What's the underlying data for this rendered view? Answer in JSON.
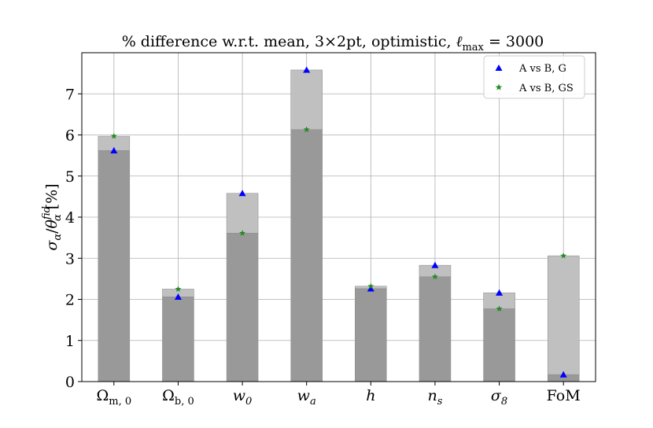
{
  "chart_data": {
    "type": "bar",
    "title": "% difference w.r.t. mean, 3×2pt, optimistic, ℓmax = 3000",
    "title_parts": {
      "prefix": "% difference w.r.t. mean, 3",
      "times": "×",
      "mid": "2pt, optimistic, ",
      "ell": "ℓ",
      "sub": "max",
      "suffix": " = 3000"
    },
    "xlabel": "",
    "ylabel": "σα/θαfid [%]",
    "ylabel_parts": {
      "sigma": "σ",
      "sub_alpha": "α",
      "slash": "/",
      "theta": "θ",
      "sup_fid": "fid",
      "unit": " [%]"
    },
    "ylim": [
      0,
      8
    ],
    "yticks": [
      0,
      1,
      2,
      3,
      4,
      5,
      6,
      7
    ],
    "grid": true,
    "legend_position": "top-right",
    "categories": [
      {
        "base": "Ω",
        "sub": "m, 0",
        "italic": false
      },
      {
        "base": "Ω",
        "sub": "b, 0",
        "italic": false
      },
      {
        "base": "w",
        "sub": "0",
        "italic": true
      },
      {
        "base": "w",
        "sub": "a",
        "italic": true
      },
      {
        "base": "h",
        "sub": "",
        "italic": true
      },
      {
        "base": "n",
        "sub": "s",
        "italic": true
      },
      {
        "base": "σ",
        "sub": "8",
        "italic": true
      },
      {
        "base": "FoM",
        "sub": "",
        "italic": false
      }
    ],
    "series": [
      {
        "name": "A vs B, G",
        "marker": "triangle",
        "color": "#0000ff",
        "values": [
          5.62,
          2.06,
          4.58,
          7.58,
          2.26,
          2.83,
          2.16,
          0.17
        ]
      },
      {
        "name": "A vs B, GS",
        "marker": "star",
        "color": "#228b22",
        "values": [
          5.97,
          2.25,
          3.61,
          6.13,
          2.32,
          2.55,
          1.77,
          3.06
        ]
      }
    ],
    "bar_colors": {
      "overlap": "#999999",
      "excess": "#c0c0c0",
      "grid": "#b0b0b0"
    }
  }
}
